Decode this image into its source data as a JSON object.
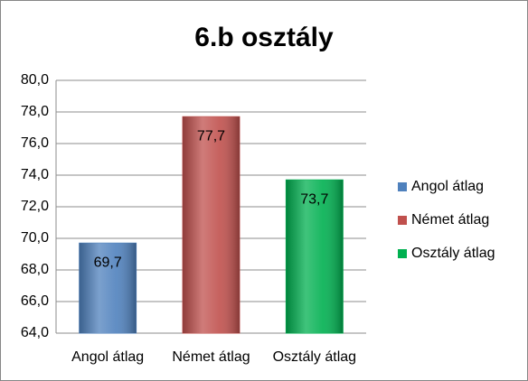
{
  "chart_data": {
    "type": "bar",
    "title": "6.b osztály",
    "categories": [
      "Angol átlag",
      "Német átlag",
      "Osztály átlag"
    ],
    "values": [
      69.7,
      77.7,
      73.7
    ],
    "value_labels": [
      "69,7",
      "77,7",
      "73,7"
    ],
    "colors": [
      "#4f81bd",
      "#c0504d",
      "#00b050"
    ],
    "ylim": [
      64,
      80
    ],
    "yticks": [
      {
        "value": 64,
        "label": "64,0"
      },
      {
        "value": 66,
        "label": "66,0"
      },
      {
        "value": 68,
        "label": "68,0"
      },
      {
        "value": 70,
        "label": "70,0"
      },
      {
        "value": 72,
        "label": "72,0"
      },
      {
        "value": 74,
        "label": "74,0"
      },
      {
        "value": 76,
        "label": "76,0"
      },
      {
        "value": 78,
        "label": "78,0"
      },
      {
        "value": 80,
        "label": "80,0"
      }
    ],
    "grid": true,
    "legend": "right"
  }
}
